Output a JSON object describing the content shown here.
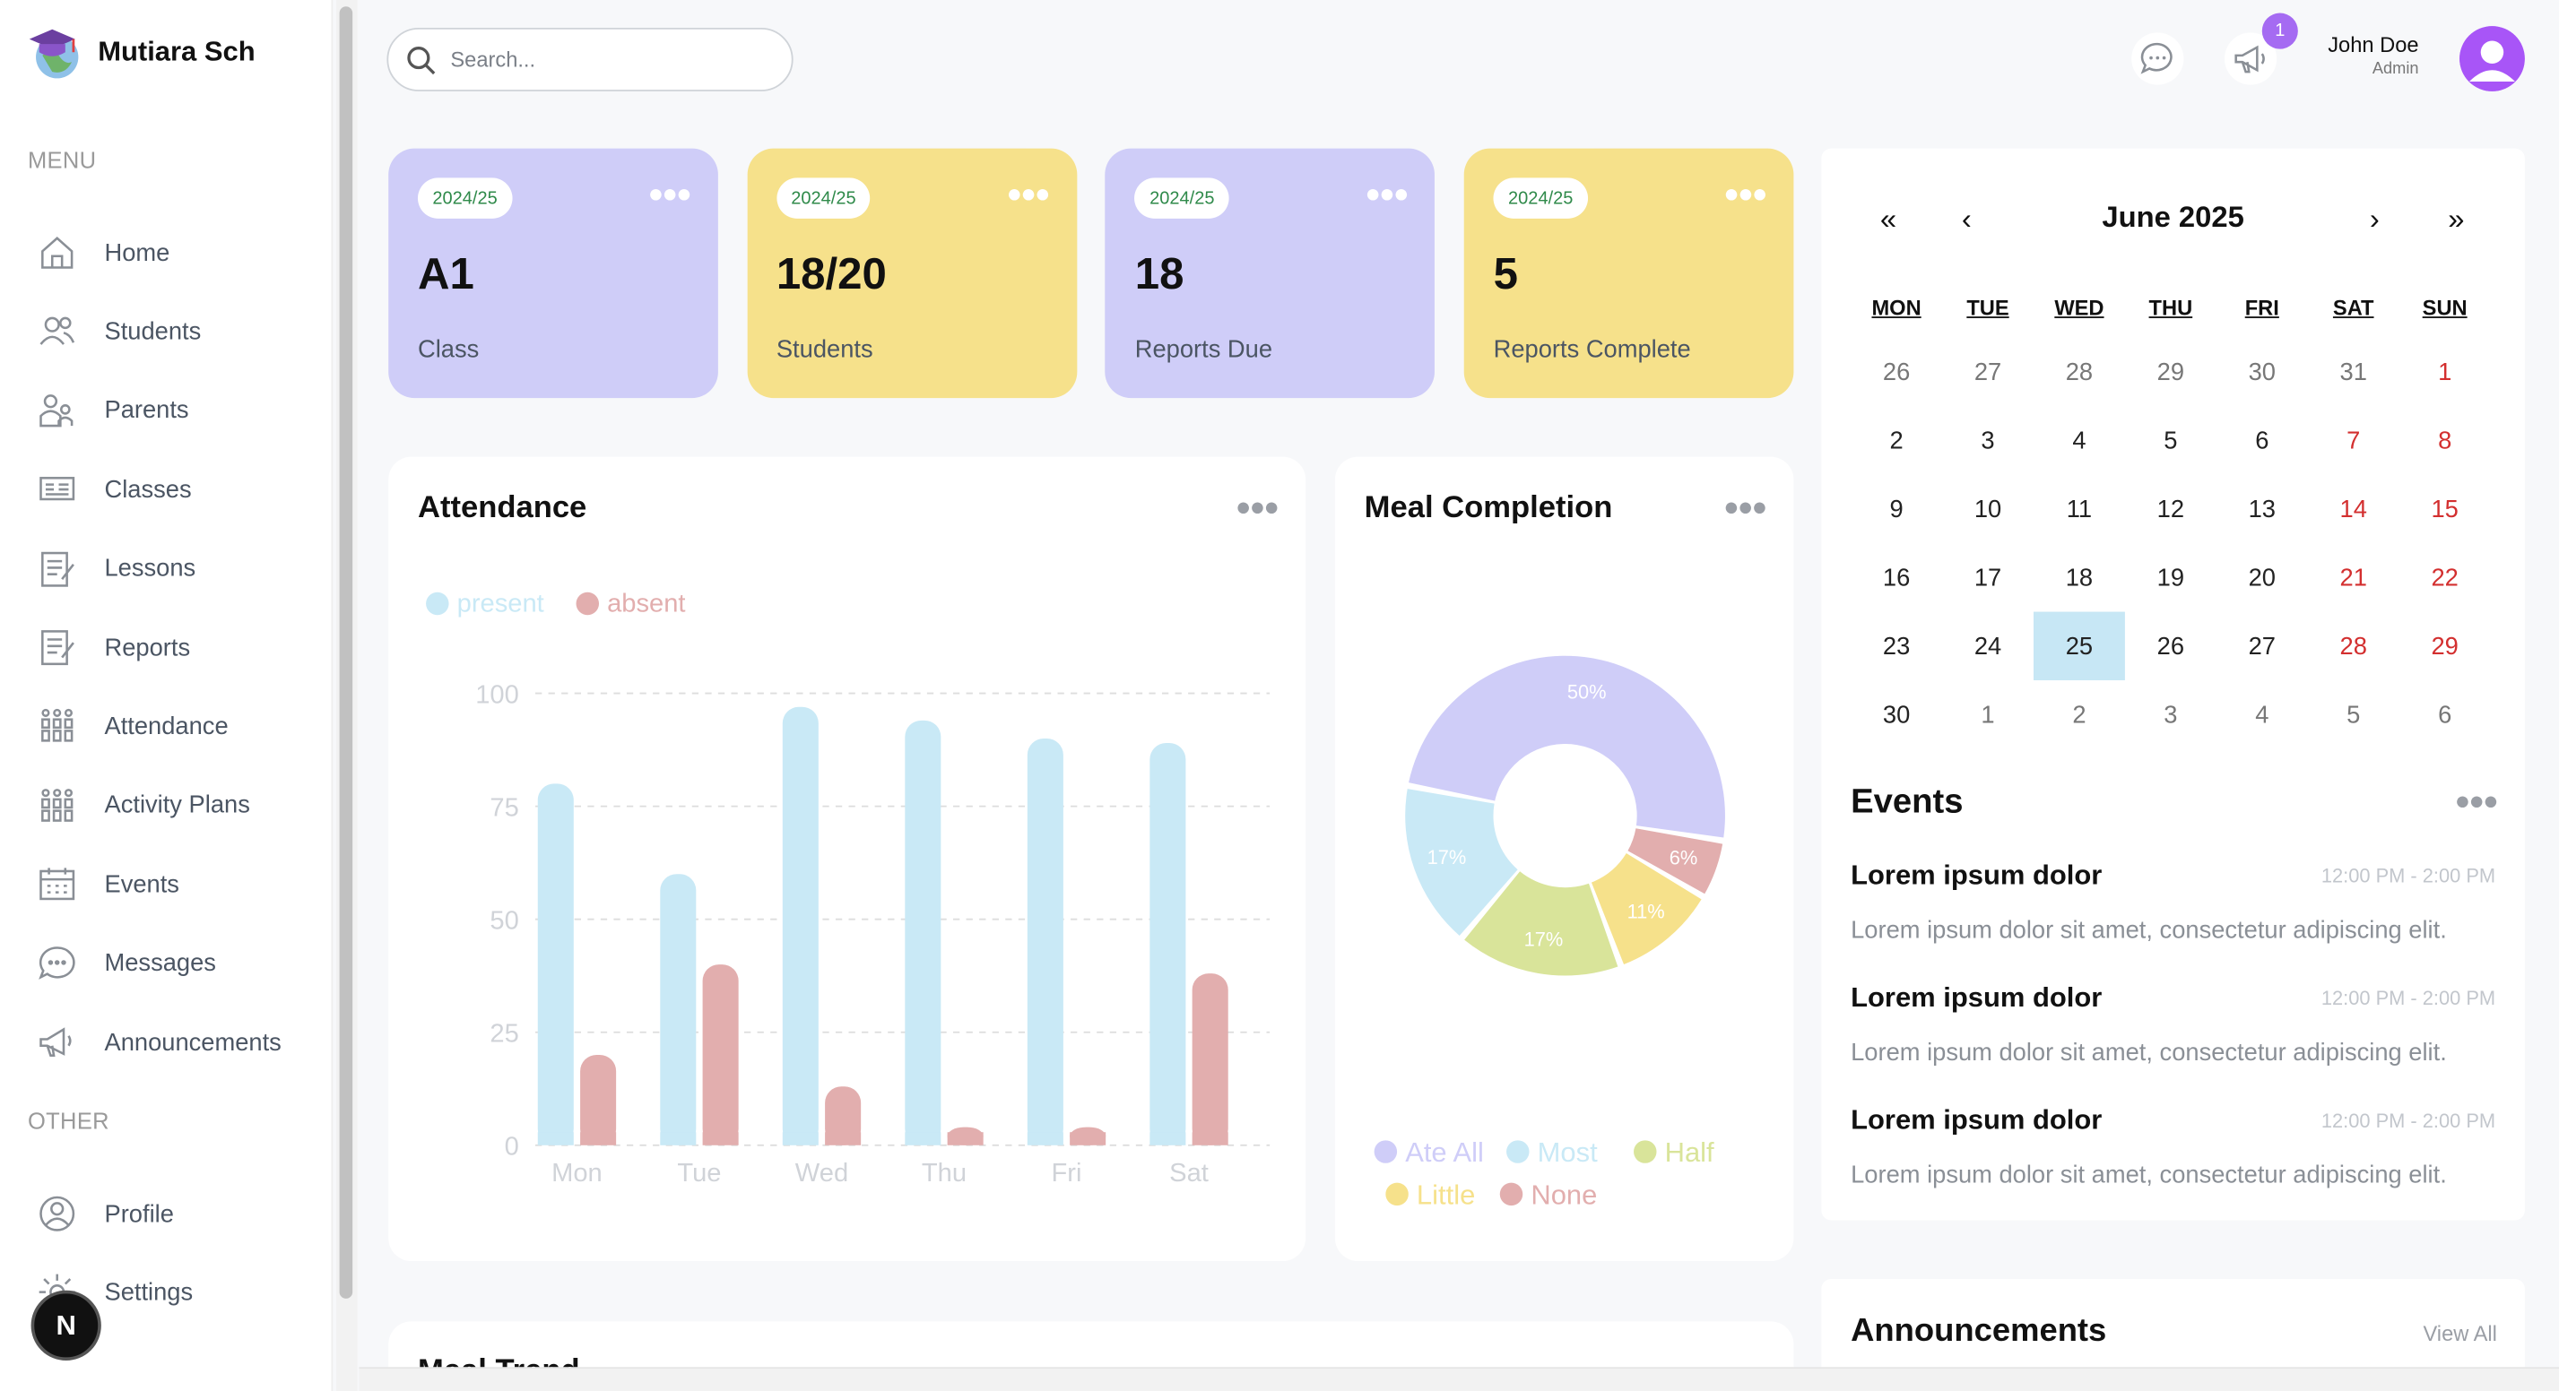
{
  "brand": {
    "name": "Mutiara Sch"
  },
  "sidebar": {
    "menu_heading": "MENU",
    "other_heading": "OTHER",
    "menu_items": [
      {
        "label": "Home",
        "icon": "home-icon"
      },
      {
        "label": "Students",
        "icon": "students-icon"
      },
      {
        "label": "Parents",
        "icon": "parents-icon"
      },
      {
        "label": "Classes",
        "icon": "classes-icon"
      },
      {
        "label": "Lessons",
        "icon": "lessons-icon"
      },
      {
        "label": "Reports",
        "icon": "reports-icon"
      },
      {
        "label": "Attendance",
        "icon": "attendance-icon"
      },
      {
        "label": "Activity Plans",
        "icon": "activity-plans-icon"
      },
      {
        "label": "Events",
        "icon": "calendar-icon"
      },
      {
        "label": "Messages",
        "icon": "message-icon"
      },
      {
        "label": "Announcements",
        "icon": "megaphone-icon"
      }
    ],
    "other_items": [
      {
        "label": "Profile",
        "icon": "profile-icon"
      },
      {
        "label": "Settings",
        "icon": "gear-icon"
      }
    ],
    "badge_letter": "N"
  },
  "topbar": {
    "search_placeholder": "Search...",
    "notification_count": "1",
    "user_name": "John Doe",
    "user_role": "Admin"
  },
  "cards": [
    {
      "tag": "2024/25",
      "value": "A1",
      "label": "Class",
      "color": "#cfcdf8"
    },
    {
      "tag": "2024/25",
      "value": "18/20",
      "label": "Students",
      "color": "#f6e18b"
    },
    {
      "tag": "2024/25",
      "value": "18",
      "label": "Reports Due",
      "color": "#cfcdf8"
    },
    {
      "tag": "2024/25",
      "value": "5",
      "label": "Reports Complete",
      "color": "#f6e18b"
    }
  ],
  "attendance": {
    "title": "Attendance"
  },
  "meal": {
    "title": "Meal Completion"
  },
  "chart_data": [
    {
      "type": "bar",
      "title": "Attendance",
      "categories": [
        "Mon",
        "Tue",
        "Wed",
        "Thu",
        "Fri",
        "Sat"
      ],
      "series": [
        {
          "name": "present",
          "values": [
            80,
            60,
            97,
            94,
            90,
            89
          ],
          "color": "#c9e9f6"
        },
        {
          "name": "absent",
          "values": [
            20,
            40,
            13,
            4,
            4,
            38
          ],
          "color": "#e2aeae"
        }
      ],
      "yticks": [
        "0",
        "25",
        "50",
        "75",
        "100"
      ],
      "ylim": [
        0,
        100
      ],
      "grid": true,
      "legend": "top-left"
    },
    {
      "type": "pie",
      "title": "Meal Completion",
      "donut": true,
      "slices": [
        {
          "name": "Ate All",
          "value": 50,
          "label": "50%",
          "color": "#cfcdf8"
        },
        {
          "name": "None",
          "value": 6,
          "label": "6%",
          "color": "#e2aeae"
        },
        {
          "name": "Little",
          "value": 11,
          "label": "11%",
          "color": "#f6e18b"
        },
        {
          "name": "Half",
          "value": 17,
          "label": "17%",
          "color": "#d9e49a"
        },
        {
          "name": "Most",
          "value": 17,
          "label": "17%",
          "color": "#c9e9f6"
        }
      ],
      "legend_order": [
        "Ate All",
        "Most",
        "Half",
        "Little",
        "None"
      ],
      "legend": "bottom"
    }
  ],
  "calendar": {
    "month_label": "June 2025",
    "nav": {
      "first": "«",
      "prev": "‹",
      "next": "›",
      "last": "»"
    },
    "weekdays": [
      "MON",
      "TUE",
      "WED",
      "THU",
      "FRI",
      "SAT",
      "SUN"
    ],
    "weeks": [
      [
        "26",
        "27",
        "28",
        "29",
        "30",
        "31",
        "1"
      ],
      [
        "2",
        "3",
        "4",
        "5",
        "6",
        "7",
        "8"
      ],
      [
        "9",
        "10",
        "11",
        "12",
        "13",
        "14",
        "15"
      ],
      [
        "16",
        "17",
        "18",
        "19",
        "20",
        "21",
        "22"
      ],
      [
        "23",
        "24",
        "25",
        "26",
        "27",
        "28",
        "29"
      ],
      [
        "30",
        "1",
        "2",
        "3",
        "4",
        "5",
        "6"
      ]
    ],
    "selected": "25",
    "weekend_color": "#d32f2f"
  },
  "events": {
    "title": "Events",
    "items": [
      {
        "title": "Lorem ipsum dolor",
        "time": "12:00 PM - 2:00 PM",
        "desc": "Lorem ipsum dolor sit amet, consectetur adipiscing elit."
      },
      {
        "title": "Lorem ipsum dolor",
        "time": "12:00 PM - 2:00 PM",
        "desc": "Lorem ipsum dolor sit amet, consectetur adipiscing elit."
      },
      {
        "title": "Lorem ipsum dolor",
        "time": "12:00 PM - 2:00 PM",
        "desc": "Lorem ipsum dolor sit amet, consectetur adipiscing elit."
      }
    ]
  },
  "announcements": {
    "title": "Announcements",
    "view_all": "View All"
  },
  "meal_trend": {
    "title": "Meal Trend"
  }
}
